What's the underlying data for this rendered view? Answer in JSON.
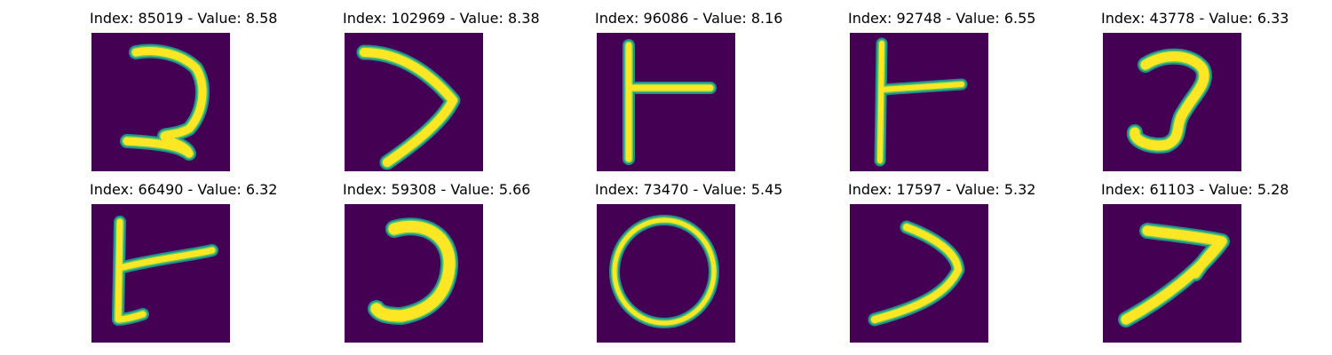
{
  "figure": {
    "colors": {
      "background": "#440154",
      "stroke": "#fde725",
      "edge": "#21908d",
      "edge_inner": "#5dc863"
    },
    "panels": [
      {
        "index": "85019",
        "value": "8.58",
        "glyph": "digit-2-like"
      },
      {
        "index": "102969",
        "value": "8.38",
        "glyph": "angle-right-like"
      },
      {
        "index": "96086",
        "value": "8.16",
        "glyph": "t-left-like"
      },
      {
        "index": "92748",
        "value": "6.55",
        "glyph": "t-left-like"
      },
      {
        "index": "43778",
        "value": "6.33",
        "glyph": "hook-like"
      },
      {
        "index": "66490",
        "value": "6.32",
        "glyph": "t-left-like"
      },
      {
        "index": "59308",
        "value": "5.66",
        "glyph": "reverse-c-like"
      },
      {
        "index": "73470",
        "value": "5.45",
        "glyph": "zero-like"
      },
      {
        "index": "17597",
        "value": "5.32",
        "glyph": "angle-right-like"
      },
      {
        "index": "61103",
        "value": "5.28",
        "glyph": "arrow-right-like"
      }
    ],
    "label_index": "Index:",
    "label_value": "Value:",
    "label_sep": "-"
  }
}
